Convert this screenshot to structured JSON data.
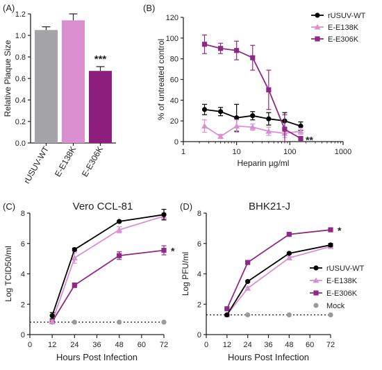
{
  "colors": {
    "wt": "#000000",
    "e138": "#d98fd0",
    "e306": "#8e2a86",
    "mock": "#9a9a9a",
    "bar_wt": "#a4a4a6",
    "bar_e138": "#d98fd0",
    "bar_e306": "#8e1f7e"
  },
  "chart_data": [
    {
      "panel": "(A)",
      "type": "bar",
      "ylabel": "Relative Plaque Size",
      "ylim": [
        0,
        1.2
      ],
      "yticks": [
        "0.0",
        "0.2",
        "0.4",
        "0.6",
        "0.8",
        "1.0",
        "1.2"
      ],
      "categories": [
        "rUSUV-WT",
        "E-E138K",
        "E-E306K"
      ],
      "values": [
        1.05,
        1.14,
        0.67
      ],
      "errors": [
        0.03,
        0.06,
        0.04
      ],
      "annotations": [
        {
          "category": "E-E306K",
          "text": "***"
        }
      ]
    },
    {
      "panel": "(B)",
      "type": "line",
      "xscale": "log",
      "xlabel": "Heparin µg/ml",
      "ylabel": "% of untreated control",
      "xlim": [
        1,
        1000
      ],
      "ylim": [
        0,
        120
      ],
      "xticks": [
        "1",
        "10",
        "100",
        "1000"
      ],
      "yticks": [
        "0",
        "20",
        "40",
        "60",
        "80",
        "100",
        "120"
      ],
      "legend_position": "top-right",
      "annotations": [
        {
          "series": "E-E306K",
          "text": "**"
        }
      ],
      "series": [
        {
          "name": "rUSUV-WT",
          "color": "wt",
          "marker": "circle",
          "x": [
            2.5,
            5,
            10,
            20,
            40,
            80,
            160
          ],
          "y": [
            31,
            29,
            23,
            25,
            22,
            20,
            15
          ],
          "err": [
            5,
            4,
            13,
            4,
            6,
            8,
            4
          ]
        },
        {
          "name": "E-E138K",
          "color": "e138",
          "marker": "triangle",
          "x": [
            2.5,
            5,
            10,
            20,
            40,
            80,
            160
          ],
          "y": [
            15,
            5,
            15,
            14,
            10,
            8,
            10
          ],
          "err": [
            6,
            2,
            6,
            3,
            4,
            4,
            3
          ]
        },
        {
          "name": "E-E306K",
          "color": "e306",
          "marker": "square",
          "x": [
            2.5,
            5,
            10,
            20,
            40,
            80,
            160
          ],
          "y": [
            94,
            90,
            88,
            81,
            50,
            12,
            3
          ],
          "err": [
            9,
            5,
            9,
            12,
            19,
            14,
            2
          ]
        }
      ]
    },
    {
      "panel": "(C)",
      "type": "line",
      "title": "Vero CCL-81",
      "xlabel": "Hours Post Infection",
      "ylabel": "Log TCID50/ml",
      "xlim": [
        0,
        72
      ],
      "ylim": [
        0,
        8
      ],
      "xticks": [
        "0",
        "12",
        "24",
        "36",
        "48",
        "60",
        "72"
      ],
      "yticks": [
        "0",
        "2",
        "4",
        "6",
        "8"
      ],
      "detection_limit": 0.82,
      "annotations": [
        {
          "series": "E-E306K",
          "text": "*"
        }
      ],
      "series": [
        {
          "name": "rUSUV-WT",
          "color": "wt",
          "marker": "circle",
          "x": [
            12,
            24,
            48,
            72
          ],
          "y": [
            1.25,
            5.6,
            7.45,
            7.9
          ],
          "err": [
            0.2,
            0.1,
            0.05,
            0.35
          ]
        },
        {
          "name": "E-E138K",
          "color": "e138",
          "marker": "triangle",
          "x": [
            12,
            24,
            48,
            72
          ],
          "y": [
            0.85,
            5.05,
            6.9,
            7.8
          ],
          "err": [
            0.1,
            0.35,
            0.2,
            0.2
          ]
        },
        {
          "name": "E-E306K",
          "color": "e306",
          "marker": "square",
          "x": [
            12,
            24,
            48,
            72
          ],
          "y": [
            0.85,
            3.25,
            5.2,
            5.55
          ],
          "err": [
            0.1,
            0.15,
            0.25,
            0.3
          ]
        },
        {
          "name": "Mock",
          "color": "mock",
          "marker": "circle",
          "x": [
            12,
            24,
            48,
            72
          ],
          "y": [
            0.82,
            0.82,
            0.82,
            0.82
          ],
          "err": [
            0,
            0,
            0,
            0
          ]
        }
      ]
    },
    {
      "panel": "(D)",
      "type": "line",
      "title": "BHK21-J",
      "xlabel": "Hours Post Infection",
      "ylabel": "Log PFU/ml",
      "xlim": [
        0,
        72
      ],
      "ylim": [
        0,
        8
      ],
      "xticks": [
        "0",
        "12",
        "24",
        "36",
        "48",
        "60",
        "72"
      ],
      "yticks": [
        "0",
        "2",
        "4",
        "6",
        "8"
      ],
      "detection_limit": 1.3,
      "legend_position": "right",
      "annotations": [
        {
          "series": "E-E306K",
          "text": "*"
        }
      ],
      "series": [
        {
          "name": "rUSUV-WT",
          "color": "wt",
          "marker": "circle",
          "x": [
            12,
            24,
            48,
            72
          ],
          "y": [
            1.3,
            3.5,
            5.35,
            5.9
          ],
          "err": [
            0.05,
            0.05,
            0.05,
            0.1
          ]
        },
        {
          "name": "E-E138K",
          "color": "e138",
          "marker": "triangle",
          "x": [
            12,
            24,
            48,
            72
          ],
          "y": [
            1.3,
            3.05,
            5.05,
            5.8
          ],
          "err": [
            0.05,
            0.1,
            0.1,
            0.1
          ]
        },
        {
          "name": "E-E306K",
          "color": "e306",
          "marker": "square",
          "x": [
            12,
            24,
            48,
            72
          ],
          "y": [
            1.7,
            4.75,
            6.6,
            6.9
          ],
          "err": [
            0.05,
            0.05,
            0.05,
            0.05
          ]
        },
        {
          "name": "Mock",
          "color": "mock",
          "marker": "circle",
          "x": [
            12,
            24,
            48,
            72
          ],
          "y": [
            1.3,
            1.3,
            1.3,
            1.3
          ],
          "err": [
            0,
            0,
            0,
            0
          ]
        }
      ]
    }
  ]
}
